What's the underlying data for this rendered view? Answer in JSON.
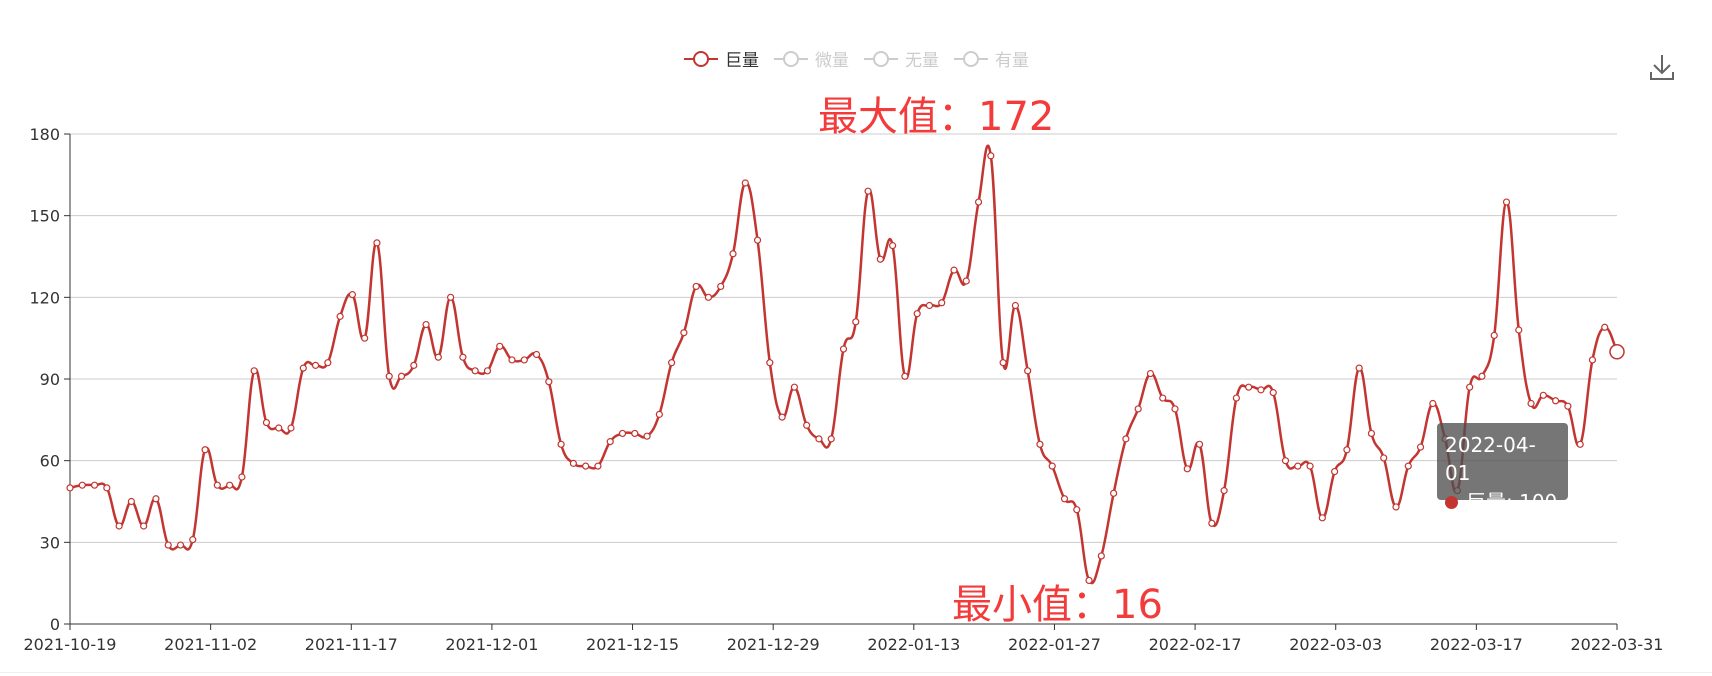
{
  "legend": [
    {
      "name": "巨量",
      "active": true
    },
    {
      "name": "微量",
      "active": false
    },
    {
      "name": "无量",
      "active": false
    },
    {
      "name": "有量",
      "active": false
    }
  ],
  "annotations": {
    "max": "最大值：172",
    "min": "最小值：16"
  },
  "tooltip": {
    "date": "2022-04-01",
    "series": "巨量",
    "value": "100",
    "label": "巨量: 100"
  },
  "toolbox": {
    "icon": "download-icon"
  },
  "colors": {
    "series": "#c23531",
    "axis": "#333333",
    "grid": "#cccccc",
    "inactive": "#cccccc",
    "annotation": "#f43b3b"
  },
  "chart_data": {
    "type": "line",
    "smooth": true,
    "ylim": [
      0,
      180
    ],
    "yticks": [
      0,
      30,
      60,
      90,
      120,
      150,
      180
    ],
    "xtick_labels": [
      "2021-10-19",
      "2021-11-02",
      "2021-11-17",
      "2021-12-01",
      "2021-12-15",
      "2021-12-29",
      "2022-01-13",
      "2022-01-27",
      "2022-02-17",
      "2022-03-03",
      "2022-03-17",
      "2022-03-31"
    ],
    "grid": true,
    "legend_position": "top-center",
    "series": [
      {
        "name": "巨量",
        "values": [
          50,
          51,
          51,
          50,
          36,
          45,
          36,
          46,
          29,
          29,
          31,
          64,
          51,
          51,
          54,
          93,
          74,
          72,
          72,
          94,
          95,
          96,
          113,
          121,
          105,
          140,
          91,
          91,
          95,
          110,
          98,
          120,
          98,
          93,
          93,
          102,
          97,
          97,
          99,
          89,
          66,
          59,
          58,
          58,
          67,
          70,
          70,
          69,
          77,
          96,
          107,
          124,
          120,
          124,
          136,
          162,
          141,
          96,
          76,
          87,
          73,
          68,
          68,
          101,
          111,
          159,
          134,
          139,
          91,
          114,
          117,
          118,
          130,
          126,
          155,
          172,
          96,
          117,
          93,
          66,
          58,
          46,
          42,
          16,
          25,
          48,
          68,
          79,
          92,
          83,
          79,
          57,
          66,
          37,
          49,
          83,
          87,
          86,
          85,
          60,
          58,
          58,
          39,
          56,
          64,
          94,
          70,
          61,
          43,
          58,
          65,
          81,
          68,
          49,
          87,
          91,
          106,
          155,
          108,
          81,
          84,
          82,
          80,
          66,
          97,
          109,
          100
        ]
      }
    ]
  }
}
